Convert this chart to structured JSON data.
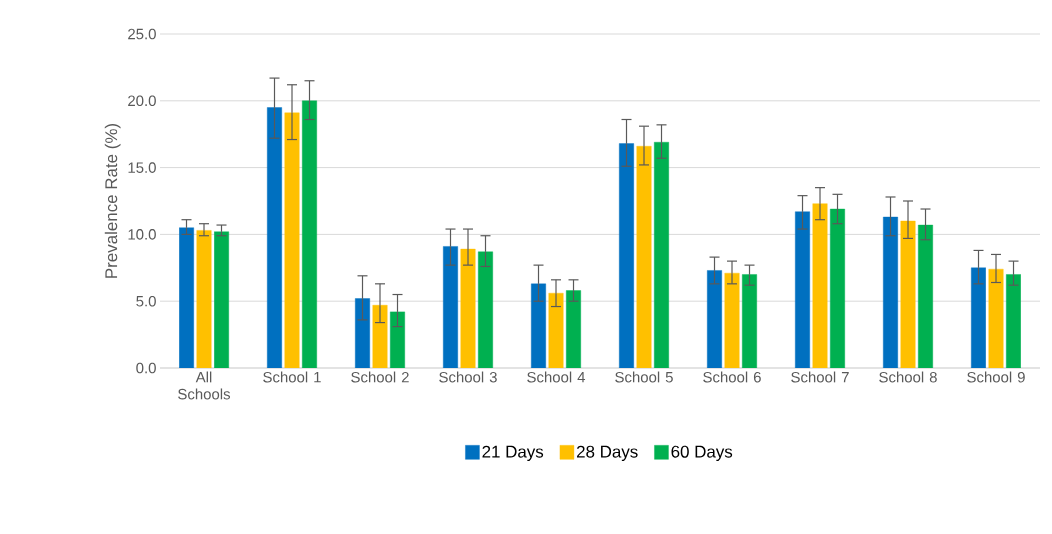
{
  "chart_data": {
    "type": "bar",
    "ylabel": "Prevalence Rate (%)",
    "categories": [
      "All Schools",
      "School 1",
      "School 2",
      "School 3",
      "School 4",
      "School 5",
      "School 6",
      "School 7",
      "School 8",
      "School 9"
    ],
    "series": [
      {
        "name": "21 Days",
        "color": "#0070c0",
        "values": [
          10.5,
          19.5,
          5.2,
          9.1,
          6.3,
          16.8,
          7.3,
          11.7,
          11.3,
          7.5
        ],
        "errors": [
          [
            10.0,
            11.1
          ],
          [
            17.2,
            21.7
          ],
          [
            3.6,
            6.9
          ],
          [
            7.7,
            10.4
          ],
          [
            5.0,
            7.7
          ],
          [
            15.1,
            18.6
          ],
          [
            6.3,
            8.3
          ],
          [
            10.4,
            12.9
          ],
          [
            9.9,
            12.8
          ],
          [
            6.3,
            8.8
          ]
        ]
      },
      {
        "name": "28 Days",
        "color": "#ffc000",
        "values": [
          10.3,
          19.1,
          4.7,
          8.9,
          5.6,
          16.6,
          7.1,
          12.3,
          11.0,
          7.4
        ],
        "errors": [
          [
            9.9,
            10.8
          ],
          [
            17.1,
            21.2
          ],
          [
            3.4,
            6.3
          ],
          [
            7.7,
            10.4
          ],
          [
            4.6,
            6.6
          ],
          [
            15.2,
            18.1
          ],
          [
            6.3,
            8.0
          ],
          [
            11.1,
            13.5
          ],
          [
            9.7,
            12.5
          ],
          [
            6.4,
            8.5
          ]
        ]
      },
      {
        "name": "60 Days",
        "color": "#00b050",
        "values": [
          10.2,
          20.0,
          4.2,
          8.7,
          5.8,
          16.9,
          7.0,
          11.9,
          10.7,
          7.0
        ],
        "errors": [
          [
            9.9,
            10.7
          ],
          [
            18.6,
            21.5
          ],
          [
            3.1,
            5.5
          ],
          [
            7.6,
            9.9
          ],
          [
            5.0,
            6.6
          ],
          [
            15.7,
            18.2
          ],
          [
            6.2,
            7.7
          ],
          [
            10.8,
            13.0
          ],
          [
            9.6,
            11.9
          ],
          [
            6.2,
            8.0
          ]
        ]
      }
    ],
    "ylim": [
      0,
      25
    ],
    "yticks": [
      {
        "value": 0,
        "label": "0.0"
      },
      {
        "value": 5,
        "label": "5.0"
      },
      {
        "value": 10,
        "label": "10.0"
      },
      {
        "value": 15,
        "label": "15.0"
      },
      {
        "value": 20,
        "label": "20.0"
      },
      {
        "value": 25,
        "label": "25.0"
      }
    ],
    "grid": "y",
    "legend": "bottom"
  }
}
